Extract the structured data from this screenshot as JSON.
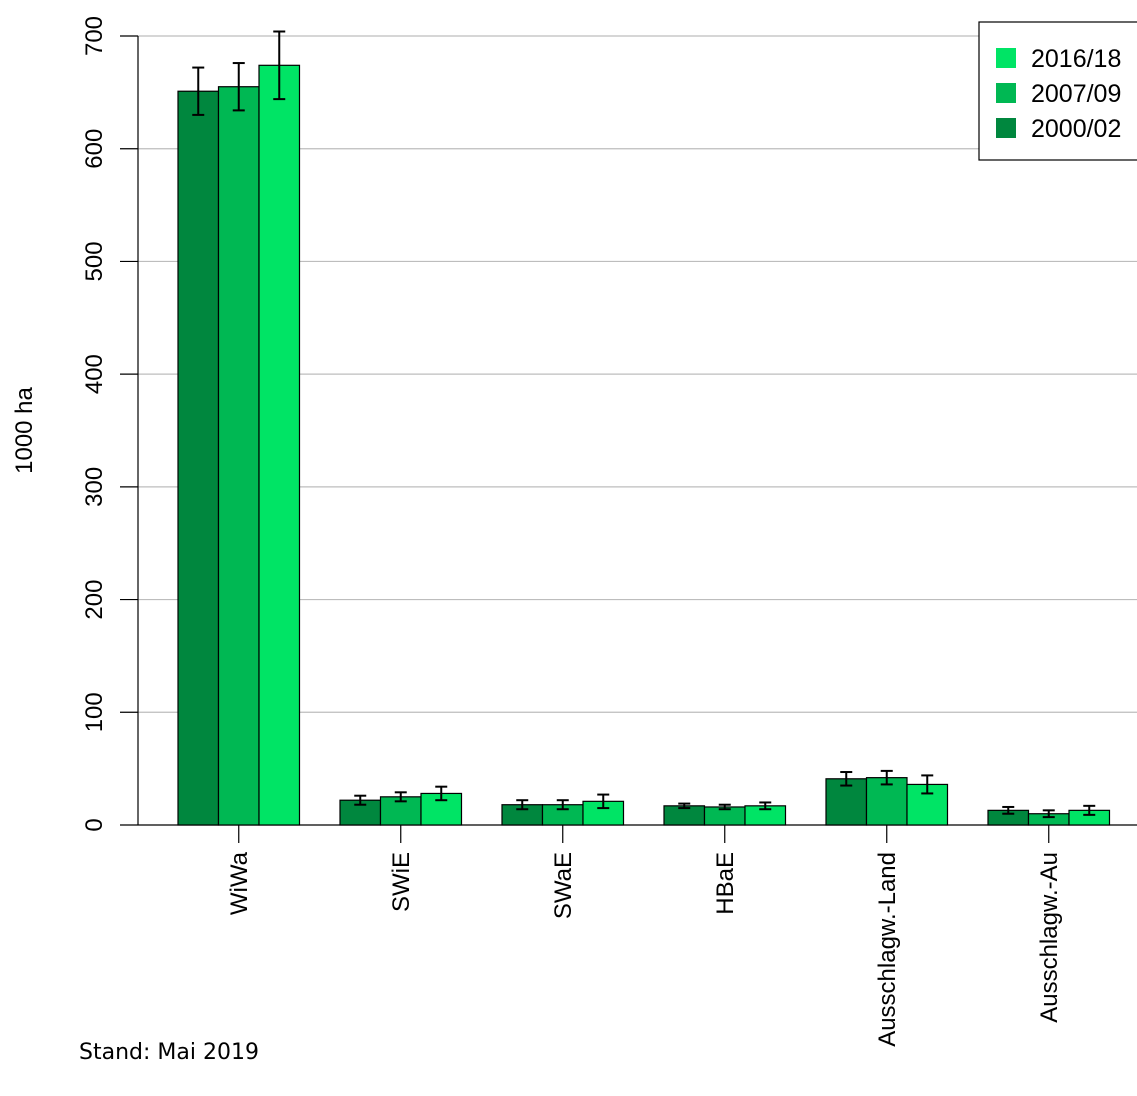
{
  "colors": {
    "2000/02": "#00873e",
    "2007/09": "#00b853",
    "2016/18": "#00e465",
    "grid": "#bdbdbd",
    "axis": "#000000"
  },
  "footnote": "Stand: Mai 2019",
  "chart_data": {
    "type": "bar",
    "title": "",
    "ylabel": "1000 ha",
    "xlabel": "",
    "ylim": [
      0,
      700
    ],
    "yticks": [
      0,
      100,
      200,
      300,
      400,
      500,
      600,
      700
    ],
    "grid": true,
    "legend_position": "top-right",
    "legend_order": [
      "2016/18",
      "2007/09",
      "2000/02"
    ],
    "categories": [
      "WiWa",
      "SWiE",
      "SWaE",
      "HBaE",
      "Ausschlagw.-Land",
      "Ausschlagw.-Au"
    ],
    "series": [
      {
        "name": "2000/02",
        "values": [
          651,
          22,
          18,
          17,
          41,
          13
        ],
        "error": [
          21,
          4,
          4,
          2,
          6,
          3
        ]
      },
      {
        "name": "2007/09",
        "values": [
          655,
          25,
          18,
          16,
          42,
          10
        ],
        "error": [
          21,
          4,
          4,
          2,
          6,
          3
        ]
      },
      {
        "name": "2016/18",
        "values": [
          674,
          28,
          21,
          17,
          36,
          13
        ],
        "error": [
          30,
          6,
          6,
          3,
          8,
          4
        ]
      }
    ]
  }
}
